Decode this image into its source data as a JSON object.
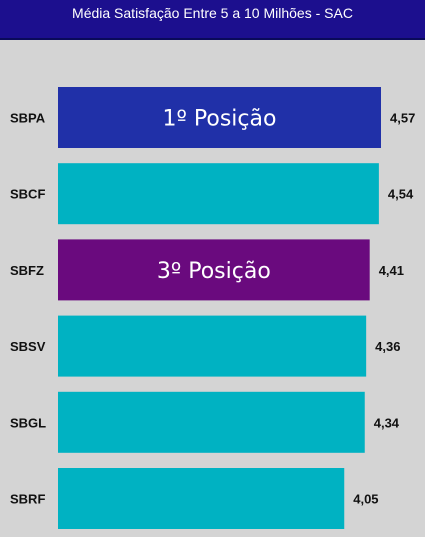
{
  "chart_data": {
    "type": "bar",
    "orientation": "horizontal",
    "title": "Média Satisfação Entre 5 a 10 Milhões -  SAC",
    "categories": [
      "SBPA",
      "SBCF",
      "SBFZ",
      "SBSV",
      "SBGL",
      "SBRF"
    ],
    "values": [
      4.57,
      4.54,
      4.41,
      4.36,
      4.34,
      4.05
    ],
    "value_labels": [
      "4,57",
      "4,54",
      "4,41",
      "4,36",
      "4,34",
      "4,05"
    ],
    "bar_colors": [
      "#2030a8",
      "#00b2c2",
      "#6a0a7e",
      "#00b2c2",
      "#00b2c2",
      "#00b2c2"
    ],
    "annotations": [
      {
        "category": "SBPA",
        "text": "1º Posição"
      },
      {
        "category": "SBFZ",
        "text": "3º Posição"
      }
    ],
    "xlim": [
      0,
      4.57
    ],
    "grid": false,
    "legend": "none"
  },
  "colors": {
    "header_bg": "#1c0f8e",
    "plot_bg": "#d4d4d4",
    "default_bar": "#00b2c2",
    "first_place_bar": "#2030a8",
    "third_place_bar": "#6a0a7e"
  }
}
